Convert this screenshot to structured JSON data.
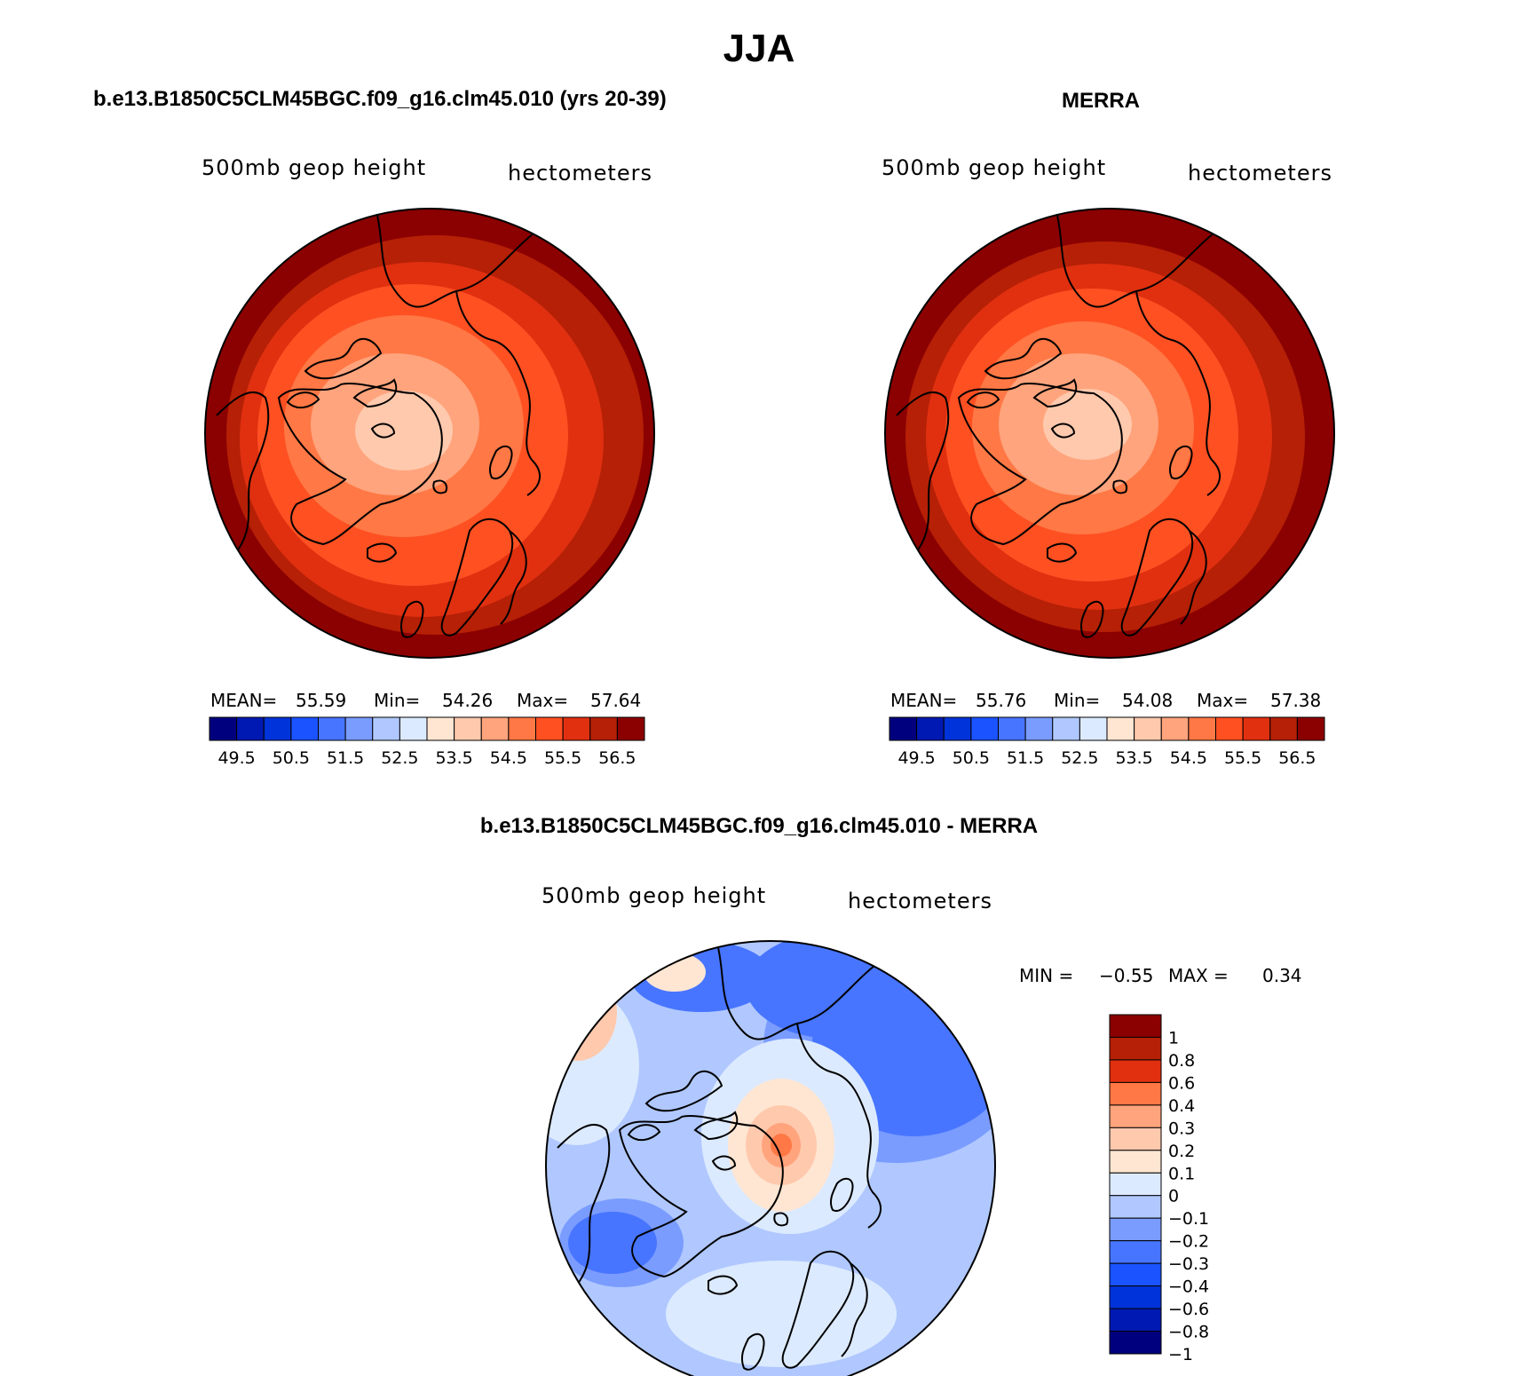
{
  "figure": {
    "season": "JJA"
  },
  "panels": [
    {
      "title": "b.e13.B1850C5CLM45BGC.f09_g16.clm45.010 (yrs 20-39)",
      "left_label": "500mb geop height",
      "right_label": "hectometers",
      "stats": {
        "mean_label": "MEAN=",
        "mean": "55.59",
        "min_label": "Min=",
        "min": "54.26",
        "max_label": "Max=",
        "max": "57.64"
      }
    },
    {
      "title": "MERRA",
      "left_label": "500mb geop height",
      "right_label": "hectometers",
      "stats": {
        "mean_label": "MEAN=",
        "mean": "55.76",
        "min_label": "Min=",
        "min": "54.08",
        "max_label": "Max=",
        "max": "57.38"
      }
    },
    {
      "title": "b.e13.B1850C5CLM45BGC.f09_g16.clm45.010 - MERRA",
      "left_label": "500mb geop height",
      "right_label": "hectometers",
      "stats": {
        "min_label": "MIN =",
        "min": "−0.55",
        "max_label": "MAX =",
        "max": "0.34"
      }
    }
  ],
  "chart_data": [
    {
      "type": "heatmap",
      "projection": "north-polar-stereographic",
      "title": "b.e13.B1850C5CLM45BGC.f09_g16.clm45.010 (yrs 20-39)",
      "variable": "500mb geop height",
      "units": "hectometers",
      "mean": 55.59,
      "min": 54.26,
      "max": 57.64,
      "colorbar_orientation": "horizontal",
      "colorbar_levels": [
        49.5,
        50,
        50.5,
        51,
        51.5,
        52,
        52.5,
        53,
        53.5,
        54,
        54.5,
        55,
        55.5,
        56,
        56.5
      ],
      "colorbar_tick_labels": [
        "49.5",
        "50.5",
        "51.5",
        "52.5",
        "53.5",
        "54.5",
        "55.5",
        "56.5"
      ],
      "colors": [
        "#00007f",
        "#0019b2",
        "#0033d9",
        "#1a53ff",
        "#4775ff",
        "#7a9cff",
        "#b0c8ff",
        "#dceaff",
        "#ffe6d2",
        "#ffc9ad",
        "#ffa47d",
        "#ff7845",
        "#ff5022",
        "#e03010",
        "#b52006",
        "#8b0000"
      ]
    },
    {
      "type": "heatmap",
      "projection": "north-polar-stereographic",
      "title": "MERRA",
      "variable": "500mb geop height",
      "units": "hectometers",
      "mean": 55.76,
      "min": 54.08,
      "max": 57.38,
      "colorbar_orientation": "horizontal",
      "colorbar_levels": [
        49.5,
        50,
        50.5,
        51,
        51.5,
        52,
        52.5,
        53,
        53.5,
        54,
        54.5,
        55,
        55.5,
        56,
        56.5
      ],
      "colorbar_tick_labels": [
        "49.5",
        "50.5",
        "51.5",
        "52.5",
        "53.5",
        "54.5",
        "55.5",
        "56.5"
      ],
      "colors": [
        "#00007f",
        "#0019b2",
        "#0033d9",
        "#1a53ff",
        "#4775ff",
        "#7a9cff",
        "#b0c8ff",
        "#dceaff",
        "#ffe6d2",
        "#ffc9ad",
        "#ffa47d",
        "#ff7845",
        "#ff5022",
        "#e03010",
        "#b52006",
        "#8b0000"
      ]
    },
    {
      "type": "heatmap",
      "projection": "north-polar-stereographic",
      "title": "b.e13.B1850C5CLM45BGC.f09_g16.clm45.010 - MERRA",
      "variable": "500mb geop height",
      "units": "hectometers",
      "min": -0.55,
      "max": 0.34,
      "colorbar_orientation": "vertical",
      "colorbar_levels": [
        -1,
        -0.8,
        -0.6,
        -0.4,
        -0.3,
        -0.2,
        -0.1,
        0,
        0.1,
        0.2,
        0.3,
        0.4,
        0.6,
        0.8,
        1
      ],
      "colorbar_tick_labels": [
        "1",
        "0.8",
        "0.6",
        "0.4",
        "0.3",
        "0.2",
        "0.1",
        "0",
        "−0.1",
        "−0.2",
        "−0.3",
        "−0.4",
        "−0.6",
        "−0.8",
        "−1"
      ],
      "colors": [
        "#8b0000",
        "#b52006",
        "#e03010",
        "#ff7845",
        "#ffa47d",
        "#ffc9ad",
        "#ffe6d2",
        "#dceaff",
        "#b0c8ff",
        "#7a9cff",
        "#4775ff",
        "#1a53ff",
        "#0033d9",
        "#0019b2",
        "#00007f"
      ]
    }
  ]
}
